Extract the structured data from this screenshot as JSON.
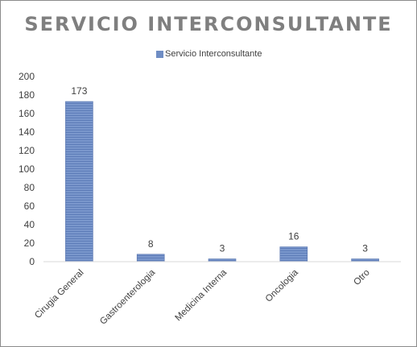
{
  "chart_data": {
    "type": "bar",
    "title": "SERVICIO INTERCONSULTANTE",
    "legend": {
      "position": "top",
      "entries": [
        "Servicio Interconsultante"
      ]
    },
    "categories": [
      "Cirugia General",
      "Gastroenterologia",
      "Medicina Interna",
      "Oncologia",
      "Otro"
    ],
    "series": [
      {
        "name": "Servicio Interconsultante",
        "values": [
          173,
          8,
          3,
          16,
          3
        ],
        "color": "#6f8dc4"
      }
    ],
    "ylim": [
      0,
      200
    ],
    "yticks": [
      "0",
      "20",
      "40",
      "60",
      "80",
      "100",
      "120",
      "140",
      "160",
      "180",
      "200"
    ],
    "grid": false,
    "data_labels": true
  }
}
